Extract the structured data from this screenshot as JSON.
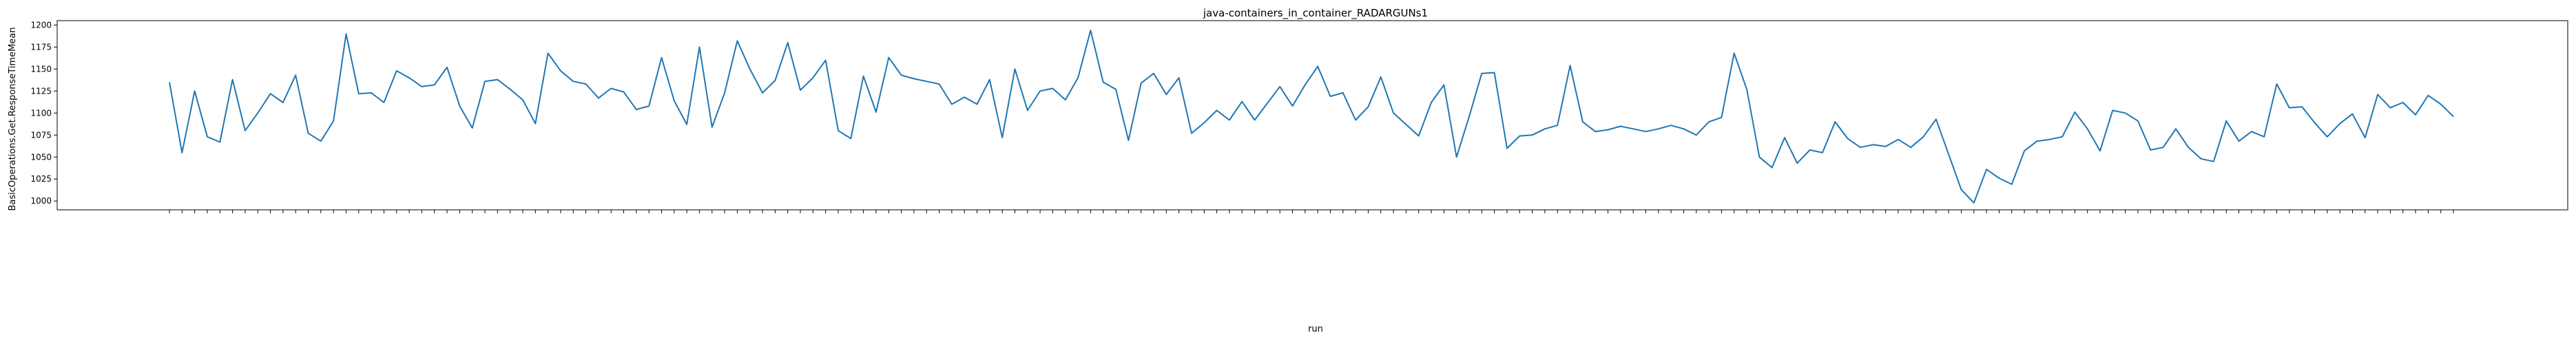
{
  "chart_data": {
    "type": "line",
    "title": "java-containers_in_container_RADARGUNs1",
    "xlabel": "run",
    "ylabel": "BasicOperations.Get.ResponseTimeMean",
    "ylim": [
      990,
      1205
    ],
    "yticks": [
      1000,
      1025,
      1050,
      1075,
      1100,
      1125,
      1150,
      1175,
      1200
    ],
    "grid": false,
    "line_color": "#1f77b4",
    "series": [
      {
        "values": [
          1135,
          1055,
          1125,
          1073,
          1067,
          1138,
          1080,
          1100,
          1122,
          1112,
          1143,
          1077,
          1068,
          1091,
          1190,
          1122,
          1123,
          1112,
          1148,
          1140,
          1130,
          1132,
          1152,
          1108,
          1083,
          1136,
          1138,
          1127,
          1115,
          1088,
          1168,
          1148,
          1136,
          1133,
          1117,
          1128,
          1124,
          1104,
          1108,
          1163,
          1114,
          1087,
          1175,
          1084,
          1123,
          1182,
          1150,
          1123,
          1137,
          1180,
          1126,
          1140,
          1160,
          1080,
          1071,
          1142,
          1101,
          1163,
          1143,
          1139,
          1136,
          1133,
          1110,
          1118,
          1110,
          1138,
          1072,
          1150,
          1103,
          1125,
          1128,
          1115,
          1140,
          1194,
          1135,
          1127,
          1069,
          1134,
          1145,
          1121,
          1140,
          1077,
          1089,
          1103,
          1092,
          1113,
          1092,
          1111,
          1130,
          1108,
          1132,
          1153,
          1119,
          1123,
          1092,
          1107,
          1141,
          1100,
          1087,
          1074,
          1112,
          1132,
          1050,
          1096,
          1145,
          1146,
          1060,
          1074,
          1075,
          1082,
          1086,
          1154,
          1090,
          1079,
          1081,
          1085,
          1082,
          1079,
          1082,
          1086,
          1082,
          1075,
          1090,
          1095,
          1168,
          1127,
          1050,
          1038,
          1072,
          1043,
          1058,
          1055,
          1090,
          1071,
          1061,
          1064,
          1062,
          1070,
          1061,
          1073,
          1093,
          1053,
          1013,
          998,
          1036,
          1026,
          1019,
          1057,
          1068,
          1070,
          1073,
          1101,
          1082,
          1057,
          1103,
          1100,
          1091,
          1058,
          1061,
          1082,
          1061,
          1048,
          1045,
          1091,
          1068,
          1079,
          1073,
          1133,
          1106,
          1107,
          1089,
          1073,
          1088,
          1099,
          1072,
          1121,
          1106,
          1112,
          1098,
          1120,
          1110,
          1096
        ]
      }
    ]
  }
}
